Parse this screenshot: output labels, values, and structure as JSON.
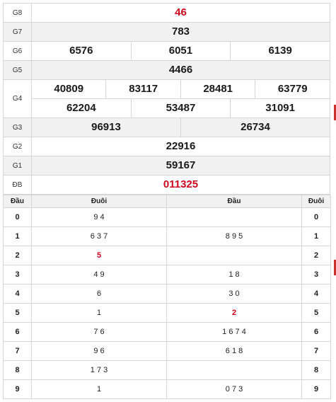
{
  "prizes": {
    "g8": {
      "label": "G8",
      "value": "46"
    },
    "g7": {
      "label": "G7",
      "value": "783"
    },
    "g6": {
      "label": "G6",
      "values": [
        "6576",
        "6051",
        "6139"
      ]
    },
    "g5": {
      "label": "G5",
      "value": "4466"
    },
    "g4": {
      "label": "G4",
      "values": [
        "40809",
        "83117",
        "28481",
        "63779",
        "62204",
        "53487",
        "31091"
      ]
    },
    "g3": {
      "label": "G3",
      "values": [
        "96913",
        "26734"
      ]
    },
    "g2": {
      "label": "G2",
      "value": "22916"
    },
    "g1": {
      "label": "G1",
      "value": "59167"
    },
    "db": {
      "label": "ĐB",
      "value": "011325"
    }
  },
  "loto": {
    "headers": {
      "dau": "Đầu",
      "duoi": "Đuôi",
      "dau2": "Đầu",
      "duoi2": "Đuôi"
    },
    "rows": [
      {
        "k": "0",
        "tail": "9 4",
        "head": "",
        "k2": "0"
      },
      {
        "k": "1",
        "tail": "6 3 7",
        "head": "8 9 5",
        "k2": "1"
      },
      {
        "k": "2",
        "tail": "5",
        "head": "",
        "k2": "2"
      },
      {
        "k": "3",
        "tail": "4 9",
        "head": "1 8",
        "k2": "3"
      },
      {
        "k": "4",
        "tail": "6",
        "head": "3 0",
        "k2": "4"
      },
      {
        "k": "5",
        "tail": "1",
        "head": "2",
        "k2": "5"
      },
      {
        "k": "6",
        "tail": "7 6",
        "head": "1 6 7 4",
        "k2": "6"
      },
      {
        "k": "7",
        "tail": "9 6",
        "head": "6 1 8",
        "k2": "7"
      },
      {
        "k": "8",
        "tail": "1 7 3",
        "head": "",
        "k2": "8"
      },
      {
        "k": "9",
        "tail": "1",
        "head": "0 7 3",
        "k2": "9"
      }
    ]
  },
  "colors": {
    "accent_red": "#d0021b",
    "row_alt": "#f1f1f1",
    "border": "#d6d6d6"
  }
}
